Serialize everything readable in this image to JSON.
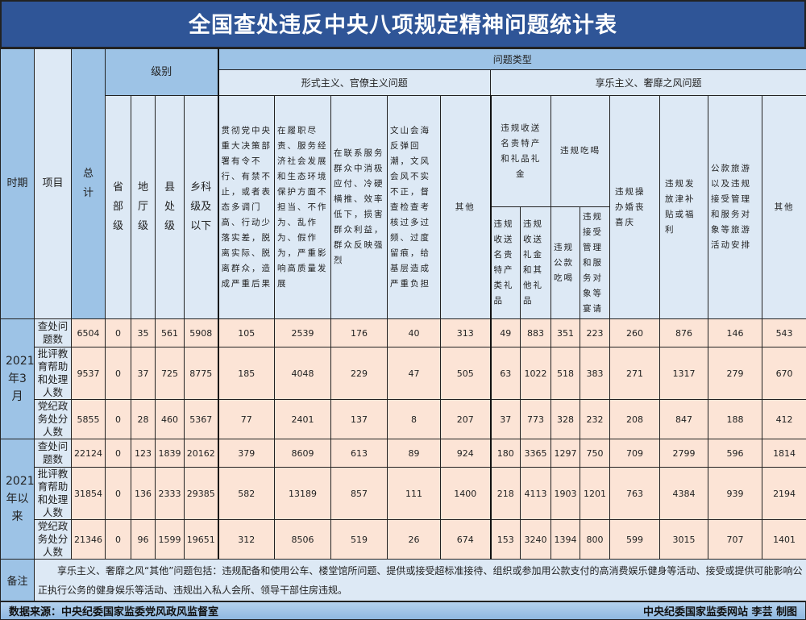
{
  "title": "全国查处违反中央八项规定精神问题统计表",
  "header": {
    "period": "时期",
    "item": "项目",
    "total": "总计",
    "level": "级别",
    "levels": [
      "省部级",
      "地厅级",
      "县处级",
      "乡科级及以下"
    ],
    "problem_type": "问题类型",
    "formalism": {
      "label": "形式主义、官僚主义问题",
      "columns": [
        "贯彻党中央重大决策部署有令不行、有禁不止，或者表态多调门高、行动少落实差，脱离实际、脱离群众，造成严重后果",
        "在履职尽责、服务经济社会发展和生态环境保护方面不担当、不作为、乱作为、假作为，严重影响高质量发展",
        "在联系服务群众中消极应付、冷硬横推、效率低下，损害群众利益，群众反映强烈",
        "文山会海反弹回潮，文风会风不实不正，督查检查考核过多过频、过度留痕，给基层造成严重负担",
        "其他"
      ]
    },
    "hedonism": {
      "label": "享乐主义、奢靡之风问题",
      "gift_group": "违规收送名贵特产和礼品礼金",
      "gift_columns": [
        "违规收送名贵特产类礼品",
        "违规收送礼金和其他礼品"
      ],
      "dining_group": "违规吃喝",
      "dining_columns": [
        "违规公款吃喝",
        "违规接受管理和服务对象等宴请"
      ],
      "columns": [
        "违规操办婚丧喜庆",
        "违规发放津补贴或福利",
        "公款旅游以及违规接受管理和服务对象等旅游活动安排",
        "其他"
      ]
    }
  },
  "periods": [
    {
      "label": "2021年3月",
      "rows": [
        {
          "item": "查处问题数",
          "values": [
            6504,
            0,
            35,
            561,
            5908,
            105,
            2539,
            176,
            40,
            313,
            49,
            883,
            351,
            223,
            260,
            876,
            146,
            543
          ]
        },
        {
          "item": "批评教育帮助和处理人数",
          "values": [
            9537,
            0,
            37,
            725,
            8775,
            185,
            4048,
            229,
            47,
            505,
            63,
            1022,
            518,
            383,
            271,
            1317,
            279,
            670
          ]
        },
        {
          "item": "党纪政务处分人数",
          "values": [
            5855,
            0,
            28,
            460,
            5367,
            77,
            2401,
            137,
            8,
            207,
            37,
            773,
            328,
            232,
            208,
            847,
            188,
            412
          ]
        }
      ]
    },
    {
      "label": "2021年以来",
      "rows": [
        {
          "item": "查处问题数",
          "values": [
            22124,
            0,
            123,
            1839,
            20162,
            379,
            8609,
            613,
            89,
            924,
            180,
            3365,
            1297,
            750,
            709,
            2799,
            596,
            1814
          ]
        },
        {
          "item": "批评教育帮助和处理人数",
          "values": [
            31854,
            0,
            136,
            2333,
            29385,
            582,
            13189,
            857,
            111,
            1400,
            218,
            4113,
            1903,
            1201,
            763,
            4384,
            939,
            2194
          ]
        },
        {
          "item": "党纪政务处分人数",
          "values": [
            21346,
            0,
            96,
            1599,
            19651,
            312,
            8506,
            519,
            26,
            674,
            153,
            3240,
            1394,
            800,
            599,
            3015,
            707,
            1401
          ]
        }
      ]
    }
  ],
  "note": {
    "label": "备注",
    "text": "享乐主义、奢靡之风“其他”问题包括：违规配备和使用公车、楼堂馆所问题、提供或接受超标准接待、组织或参加用公款支付的高消费娱乐健身等活动、接受或提供可能影响公正执行公务的健身娱乐等活动、违规出入私人会所、领导干部住房违规。"
  },
  "footer": {
    "source": "数据来源：中央纪委国家监委党风政风监督室",
    "credit": "中央纪委国家监委网站 李芸 制图"
  },
  "colors": {
    "title_bg": "#2f5597",
    "header_dark": "#9dc3e6",
    "header_light": "#dde9f5",
    "data_bg": "#fce4d6"
  }
}
